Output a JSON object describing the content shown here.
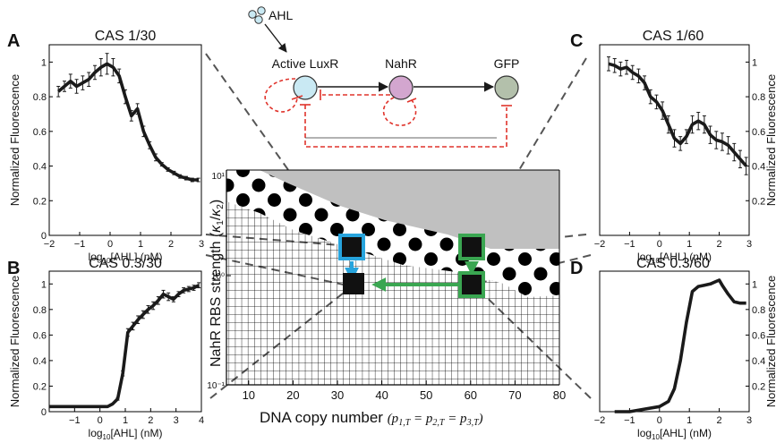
{
  "panels": [
    {
      "letter": "A",
      "title": "CAS 1/30"
    },
    {
      "letter": "B",
      "title": "CAS 0.3/30"
    },
    {
      "letter": "C",
      "title": "CAS 1/60"
    },
    {
      "letter": "D",
      "title": "CAS 0.3/60"
    }
  ],
  "circuit": {
    "ahl": "AHL",
    "luxr": "Active LuxR",
    "nahr": "NahR",
    "gfp": "GFP",
    "colors": {
      "luxr": "#c9e9f3",
      "nahr": "#d3a6cf",
      "gfp": "#b3c0ab",
      "repression": "#e0332b",
      "activation": "#1a1a1a"
    }
  },
  "colors": {
    "blue_marker": "#27a4dd",
    "green_marker": "#3aa651",
    "grey_region": "#c0c0c0",
    "curve": "#1a1a1a"
  },
  "chart_data": [
    {
      "id": "A",
      "type": "line",
      "title": "CAS 1/30",
      "xlabel_pre": "log",
      "xlabel_sub": "10",
      "xlabel_post": "[AHL] (nM)",
      "ylabel": "Normalized Fluorescence",
      "xlim": [
        -2,
        3
      ],
      "ylim": [
        0,
        1.1
      ],
      "xticks": [
        -2,
        -1,
        0,
        1,
        2,
        3
      ],
      "yticks": [
        0,
        0.2,
        0.4,
        0.6,
        0.8,
        1
      ],
      "ytick_labels": [
        "0",
        "0.2",
        "0.4",
        "0.6",
        "0.8",
        "1"
      ],
      "ylabel_side": "left",
      "x": [
        -1.7,
        -1.5,
        -1.3,
        -1.1,
        -0.9,
        -0.7,
        -0.5,
        -0.3,
        -0.1,
        0.1,
        0.3,
        0.5,
        0.7,
        0.9,
        1.1,
        1.3,
        1.5,
        1.7,
        1.9,
        2.1,
        2.3,
        2.5,
        2.7,
        2.9
      ],
      "y": [
        0.83,
        0.86,
        0.89,
        0.86,
        0.88,
        0.9,
        0.94,
        0.97,
        0.99,
        0.97,
        0.92,
        0.8,
        0.69,
        0.73,
        0.6,
        0.52,
        0.45,
        0.41,
        0.38,
        0.36,
        0.34,
        0.33,
        0.32,
        0.32
      ],
      "err": [
        0.03,
        0.03,
        0.04,
        0.04,
        0.04,
        0.04,
        0.04,
        0.05,
        0.06,
        0.05,
        0.04,
        0.04,
        0.03,
        0.03,
        0.03,
        0.02,
        0.02,
        0.01,
        0.01,
        0.01,
        0.01,
        0.01,
        0.01,
        0.01
      ]
    },
    {
      "id": "B",
      "type": "line",
      "title": "CAS 0.3/30",
      "xlabel_pre": "log",
      "xlabel_sub": "10",
      "xlabel_post": "[AHL] (nM)",
      "ylabel": "Normalized Fluorescence",
      "xlim": [
        -2,
        4
      ],
      "ylim": [
        0,
        1.1
      ],
      "xticks": [
        -1,
        0,
        1,
        2,
        3,
        4
      ],
      "yticks": [
        0,
        0.2,
        0.4,
        0.6,
        0.8,
        1
      ],
      "ytick_labels": [
        "0",
        "0.2",
        "0.4",
        "0.6",
        "0.8",
        "1"
      ],
      "ylabel_side": "left",
      "x": [
        -2,
        -1.5,
        -1,
        -0.5,
        0,
        0.3,
        0.5,
        0.7,
        0.9,
        1.1,
        1.3,
        1.5,
        1.7,
        1.9,
        2.1,
        2.3,
        2.5,
        2.7,
        2.9,
        3.1,
        3.3,
        3.5,
        3.7,
        3.9
      ],
      "y": [
        0.04,
        0.04,
        0.04,
        0.04,
        0.04,
        0.04,
        0.06,
        0.1,
        0.3,
        0.62,
        0.67,
        0.72,
        0.76,
        0.8,
        0.83,
        0.87,
        0.92,
        0.9,
        0.88,
        0.92,
        0.95,
        0.96,
        0.97,
        0.99
      ],
      "err": [
        0,
        0,
        0,
        0,
        0,
        0,
        0,
        0.01,
        0.02,
        0.03,
        0.03,
        0.03,
        0.03,
        0.03,
        0.03,
        0.03,
        0.03,
        0.03,
        0.02,
        0.02,
        0.02,
        0.02,
        0.02,
        0.02
      ]
    },
    {
      "id": "C",
      "type": "line",
      "title": "CAS 1/60",
      "xlabel_pre": "log",
      "xlabel_sub": "10",
      "xlabel_post": "[AHL] (nM)",
      "ylabel": "Normalized Fluorescence",
      "xlim": [
        -2,
        3
      ],
      "ylim": [
        0,
        1.1
      ],
      "xticks": [
        -2,
        -1,
        0,
        1,
        2,
        3
      ],
      "yticks": [
        0.2,
        0.4,
        0.6,
        0.8,
        1
      ],
      "ytick_labels": [
        "0.2",
        "0.4",
        "0.6",
        "0.8",
        "1"
      ],
      "ylabel_side": "right",
      "x": [
        -1.7,
        -1.5,
        -1.3,
        -1.1,
        -0.9,
        -0.7,
        -0.5,
        -0.3,
        -0.1,
        0.1,
        0.3,
        0.5,
        0.7,
        0.9,
        1.1,
        1.3,
        1.5,
        1.7,
        1.9,
        2.1,
        2.3,
        2.5,
        2.7,
        2.9
      ],
      "y": [
        0.99,
        0.98,
        0.96,
        0.97,
        0.94,
        0.92,
        0.88,
        0.8,
        0.77,
        0.72,
        0.64,
        0.56,
        0.53,
        0.57,
        0.64,
        0.66,
        0.64,
        0.58,
        0.55,
        0.54,
        0.52,
        0.48,
        0.44,
        0.4
      ],
      "err": [
        0.04,
        0.04,
        0.04,
        0.04,
        0.04,
        0.04,
        0.04,
        0.04,
        0.04,
        0.05,
        0.05,
        0.05,
        0.04,
        0.04,
        0.05,
        0.05,
        0.05,
        0.05,
        0.05,
        0.05,
        0.05,
        0.05,
        0.05,
        0.05
      ]
    },
    {
      "id": "D",
      "type": "line",
      "title": "CAS 0.3/60",
      "xlabel_pre": "log",
      "xlabel_sub": "10",
      "xlabel_post": "[AHL] (nM)",
      "ylabel": "Normalized Fluorescence",
      "xlim": [
        -2,
        3
      ],
      "ylim": [
        0,
        1.1
      ],
      "xticks": [
        -2,
        -1,
        0,
        1,
        2,
        3
      ],
      "yticks": [
        0.2,
        0.4,
        0.6,
        0.8,
        1
      ],
      "ytick_labels": [
        "0.2",
        "0.4",
        "0.6",
        "0.8",
        "1"
      ],
      "ylabel_side": "right",
      "x": [
        -1.5,
        -1,
        -0.5,
        0,
        0.3,
        0.5,
        0.7,
        0.9,
        1.1,
        1.3,
        1.5,
        1.7,
        1.9,
        2.0,
        2.1,
        2.3,
        2.5,
        2.7,
        2.9
      ],
      "y": [
        0.0,
        0.0,
        0.02,
        0.04,
        0.08,
        0.18,
        0.4,
        0.7,
        0.94,
        0.98,
        0.99,
        1.0,
        1.02,
        1.03,
        0.99,
        0.92,
        0.86,
        0.85,
        0.85
      ],
      "err": [
        0,
        0,
        0,
        0,
        0,
        0,
        0,
        0,
        0,
        0,
        0,
        0,
        0,
        0,
        0,
        0,
        0,
        0,
        0
      ]
    },
    {
      "id": "center",
      "type": "heatmap",
      "xlabel": "DNA copy number",
      "xlabel_formula": "(p1,T = p2,T = p3,T)",
      "ylabel": "NahR RBS strength (κ1/κ2)",
      "xlim": [
        5,
        80
      ],
      "ylim_log10": [
        -1,
        1
      ],
      "xticks": [
        10,
        20,
        30,
        40,
        50,
        60,
        70,
        80
      ],
      "ytick_labels": [
        "10⁻¹",
        "10⁰",
        "10¹"
      ],
      "markers": [
        {
          "color": "blue",
          "x": 32,
          "y": 3.3
        },
        {
          "color": "green",
          "x": 59,
          "y": 3.3
        },
        {
          "color": "green",
          "x": 59,
          "y": 1.0
        },
        {
          "color": "black",
          "x": 32,
          "y": 1.0
        }
      ]
    }
  ]
}
